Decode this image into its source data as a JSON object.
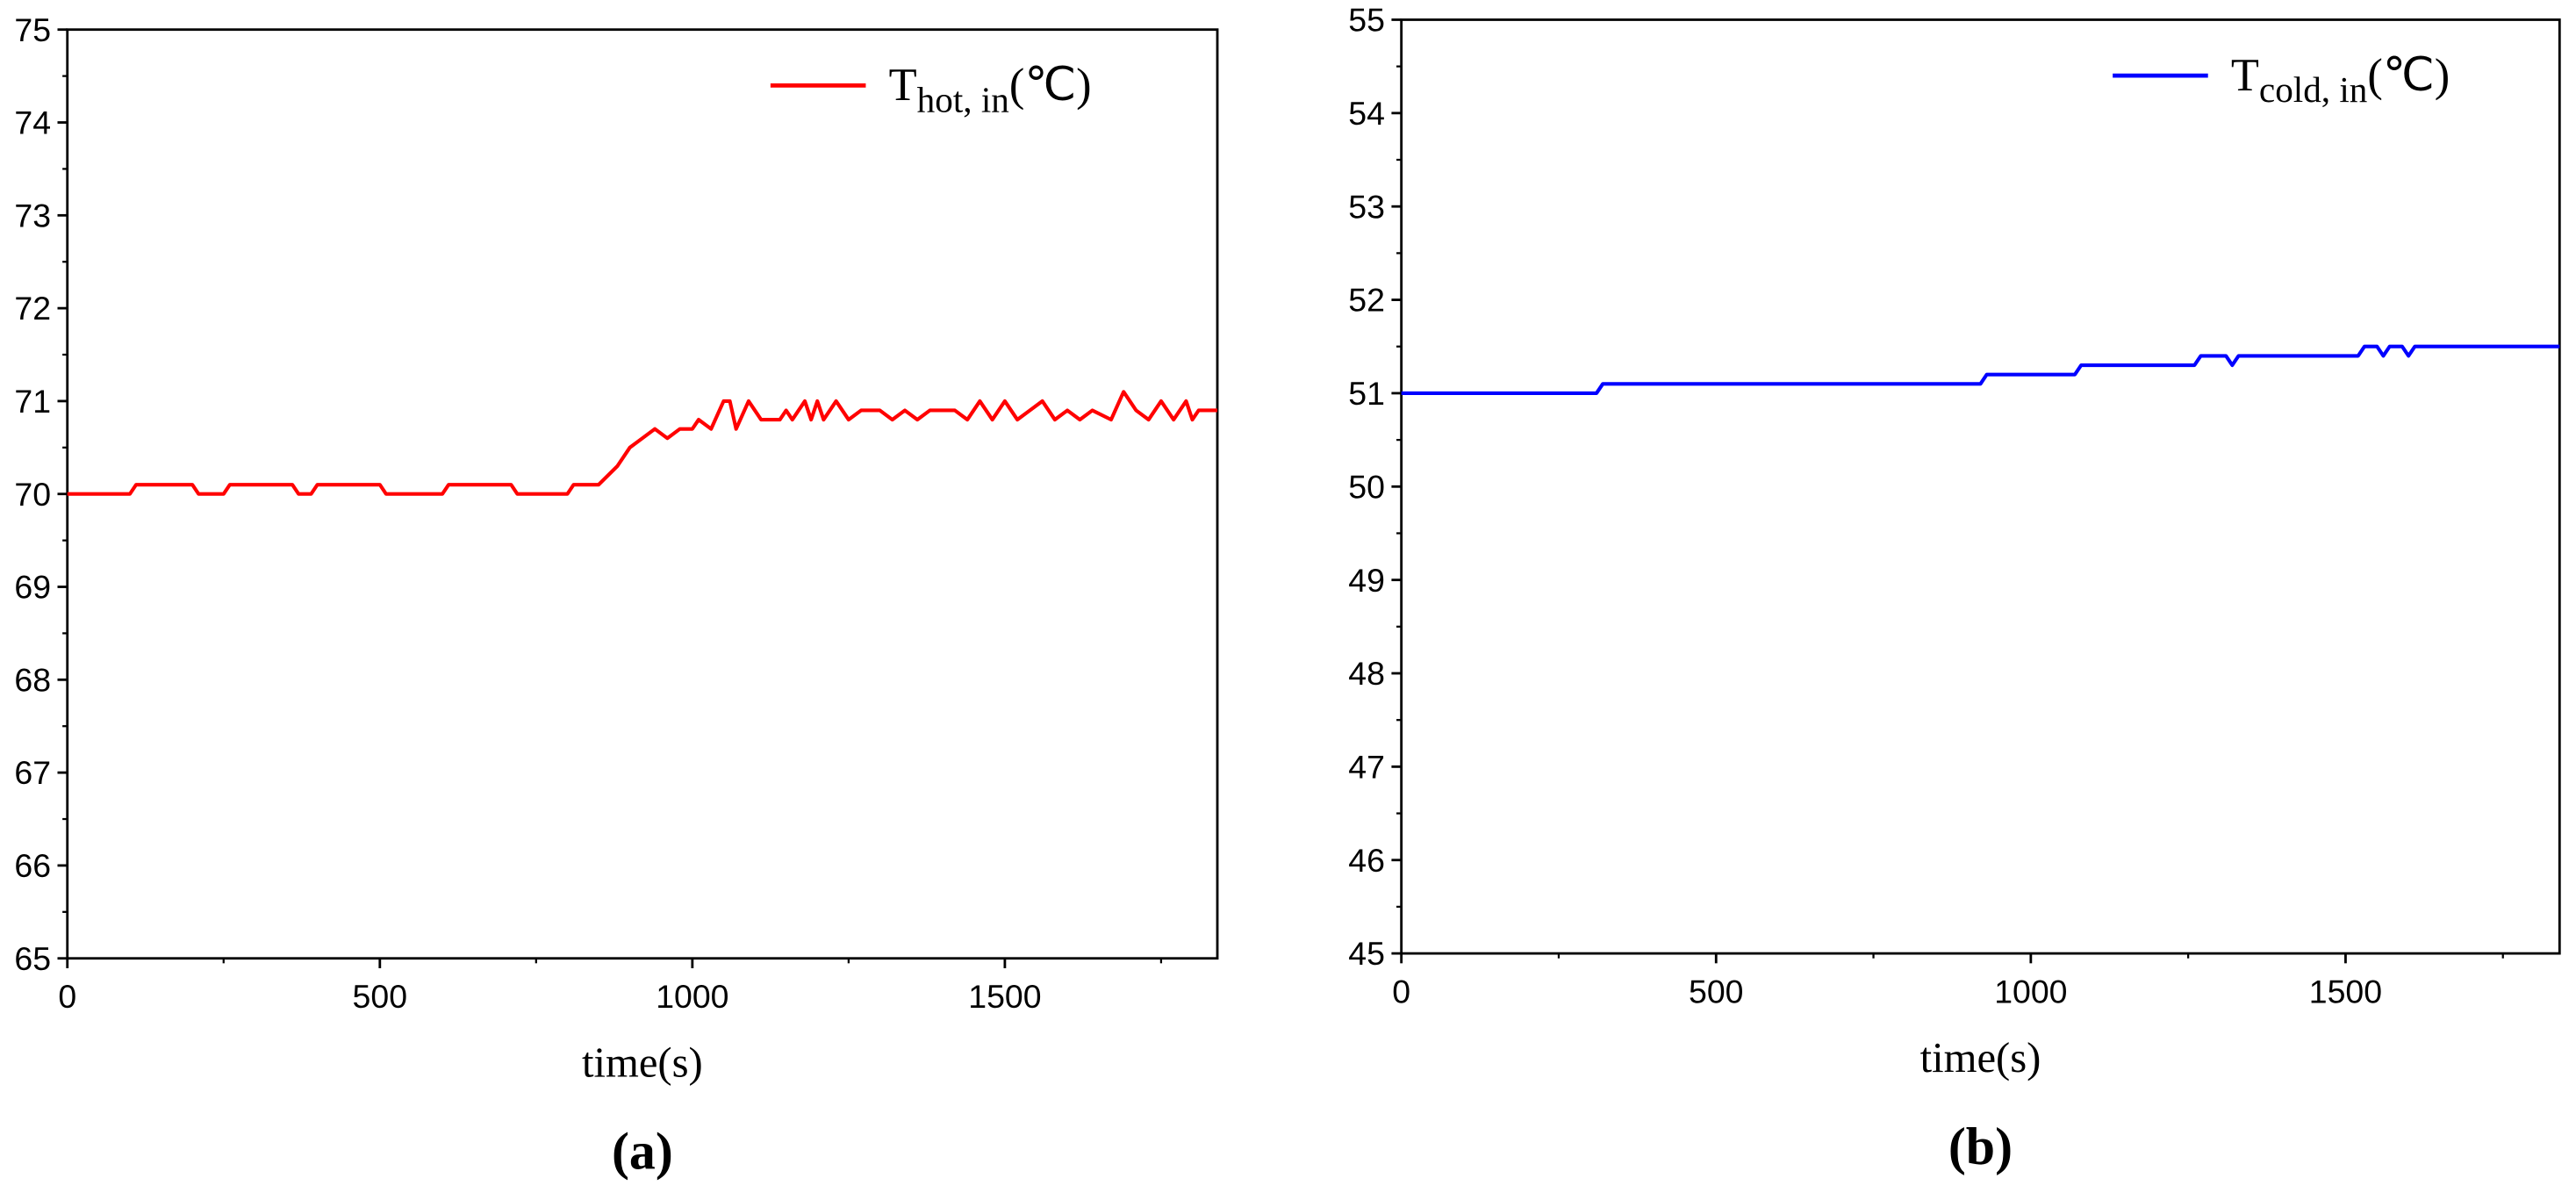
{
  "chart_data": [
    {
      "type": "line",
      "xlabel": "time(s)",
      "caption": "(a)",
      "legend": "upper right",
      "minor_ticks": true,
      "xlim": [
        0,
        1840
      ],
      "ylim": [
        65,
        75
      ],
      "xticks": [
        0,
        500,
        1000,
        1500
      ],
      "yticks": [
        65,
        66,
        67,
        68,
        69,
        70,
        71,
        72,
        73,
        74,
        75
      ],
      "series": [
        {
          "name": [
            "T",
            "hot, in",
            "(℃)"
          ],
          "color": "#ff0000",
          "x": [
            0,
            100,
            110,
            200,
            210,
            250,
            260,
            360,
            370,
            390,
            400,
            500,
            510,
            600,
            610,
            710,
            720,
            800,
            810,
            850,
            880,
            900,
            920,
            940,
            960,
            980,
            1000,
            1010,
            1030,
            1050,
            1060,
            1070,
            1090,
            1110,
            1140,
            1150,
            1160,
            1180,
            1190,
            1200,
            1210,
            1230,
            1250,
            1270,
            1300,
            1320,
            1340,
            1360,
            1380,
            1420,
            1440,
            1460,
            1480,
            1500,
            1520,
            1540,
            1560,
            1580,
            1600,
            1620,
            1640,
            1670,
            1690,
            1710,
            1730,
            1750,
            1770,
            1790,
            1800,
            1810,
            1840
          ],
          "values": [
            70,
            70,
            70.1,
            70.1,
            70,
            70,
            70.1,
            70.1,
            70,
            70,
            70.1,
            70.1,
            70,
            70,
            70.1,
            70.1,
            70,
            70,
            70.1,
            70.1,
            70.3,
            70.5,
            70.6,
            70.7,
            70.6,
            70.7,
            70.7,
            70.8,
            70.7,
            71.0,
            71.0,
            70.7,
            71.0,
            70.8,
            70.8,
            70.9,
            70.8,
            71.0,
            70.8,
            71.0,
            70.8,
            71.0,
            70.8,
            70.9,
            70.9,
            70.8,
            70.9,
            70.8,
            70.9,
            70.9,
            70.8,
            71.0,
            70.8,
            71.0,
            70.8,
            70.9,
            71.0,
            70.8,
            70.9,
            70.8,
            70.9,
            70.8,
            71.1,
            70.9,
            70.8,
            71.0,
            70.8,
            71.0,
            70.8,
            70.9,
            70.9
          ]
        }
      ]
    },
    {
      "type": "line",
      "xlabel": "time(s)",
      "caption": "(b)",
      "legend": "upper right",
      "minor_ticks": true,
      "xlim": [
        0,
        1840
      ],
      "ylim": [
        45,
        55
      ],
      "xticks": [
        0,
        500,
        1000,
        1500
      ],
      "yticks": [
        45,
        46,
        47,
        48,
        49,
        50,
        51,
        52,
        53,
        54,
        55
      ],
      "series": [
        {
          "name": [
            "T",
            "cold, in",
            "(℃)"
          ],
          "color": "#0000ff",
          "x": [
            0,
            310,
            320,
            920,
            930,
            1070,
            1080,
            1260,
            1270,
            1310,
            1320,
            1330,
            1520,
            1530,
            1550,
            1560,
            1570,
            1590,
            1600,
            1610,
            1840
          ],
          "values": [
            51.0,
            51.0,
            51.1,
            51.1,
            51.2,
            51.2,
            51.3,
            51.3,
            51.4,
            51.4,
            51.3,
            51.4,
            51.4,
            51.5,
            51.5,
            51.4,
            51.5,
            51.5,
            51.4,
            51.5,
            51.5
          ]
        }
      ]
    }
  ]
}
